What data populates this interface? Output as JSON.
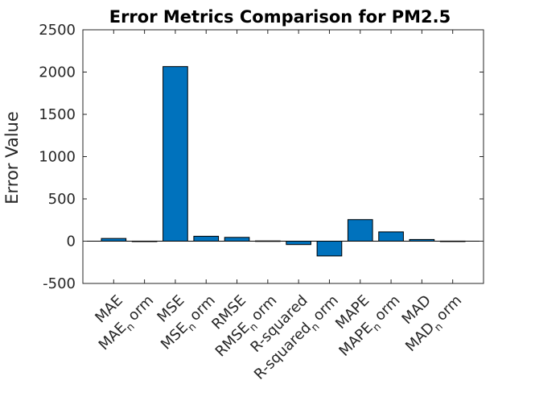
{
  "chart_data": {
    "type": "bar",
    "title": "Error Metrics Comparison for PM2.5",
    "xlabel": "",
    "ylabel": "Error Value",
    "ylim": [
      -500,
      2500
    ],
    "yticks": [
      -500,
      0,
      500,
      1000,
      1500,
      2000,
      2500
    ],
    "categories": [
      {
        "base": "MAE",
        "sub": ""
      },
      {
        "base": "MAE",
        "sub": "n",
        "tail": "orm"
      },
      {
        "base": "MSE",
        "sub": ""
      },
      {
        "base": "MSE",
        "sub": "n",
        "tail": "orm"
      },
      {
        "base": "RMSE",
        "sub": ""
      },
      {
        "base": "RMSE",
        "sub": "n",
        "tail": "orm"
      },
      {
        "base": "R-squared",
        "sub": ""
      },
      {
        "base": "R-squared",
        "sub": "n",
        "tail": "orm"
      },
      {
        "base": "MAPE",
        "sub": ""
      },
      {
        "base": "MAPE",
        "sub": "n",
        "tail": "orm"
      },
      {
        "base": "MAD",
        "sub": ""
      },
      {
        "base": "MAD",
        "sub": "n",
        "tail": "orm"
      }
    ],
    "values": [
      32,
      0.5,
      2065,
      58,
      45,
      3,
      -40,
      -175,
      255,
      110,
      20,
      1
    ],
    "bar_color": "#0072bd",
    "grid": false
  }
}
